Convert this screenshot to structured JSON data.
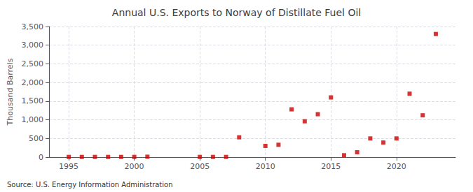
{
  "chart_data": {
    "type": "scatter",
    "title": "Annual U.S. Exports to Norway of Distillate Fuel Oil",
    "ylabel": "Thousand Barrels",
    "annotation": "Source: U.S. Energy Information Administration",
    "x": [
      1995,
      1996,
      1997,
      1998,
      1999,
      2000,
      2001,
      2005,
      2006,
      2007,
      2008,
      2010,
      2011,
      2012,
      2013,
      2014,
      2015,
      2016,
      2017,
      2018,
      2019,
      2020,
      2021,
      2022,
      2023
    ],
    "values": [
      5,
      5,
      5,
      5,
      5,
      5,
      10,
      5,
      5,
      5,
      530,
      300,
      330,
      1280,
      960,
      1150,
      1600,
      50,
      130,
      500,
      390,
      500,
      1700,
      1120,
      3300
    ],
    "color": "#cc0000",
    "marker": "square",
    "xlim": [
      1993.5,
      2024.5
    ],
    "xticks": [
      1995,
      2000,
      2005,
      2010,
      2015,
      2020
    ],
    "ylim": [
      0,
      3500
    ],
    "yticks": [
      0,
      500,
      {
        "value": 1000,
        "label": "1,000"
      },
      {
        "value": 1500,
        "label": "1,500"
      },
      {
        "value": 2000,
        "label": "2,000"
      },
      {
        "value": 2500,
        "label": "2,500"
      },
      {
        "value": 3000,
        "label": "3,000"
      },
      {
        "value": 3500,
        "label": "3,500"
      }
    ],
    "grid": true
  }
}
